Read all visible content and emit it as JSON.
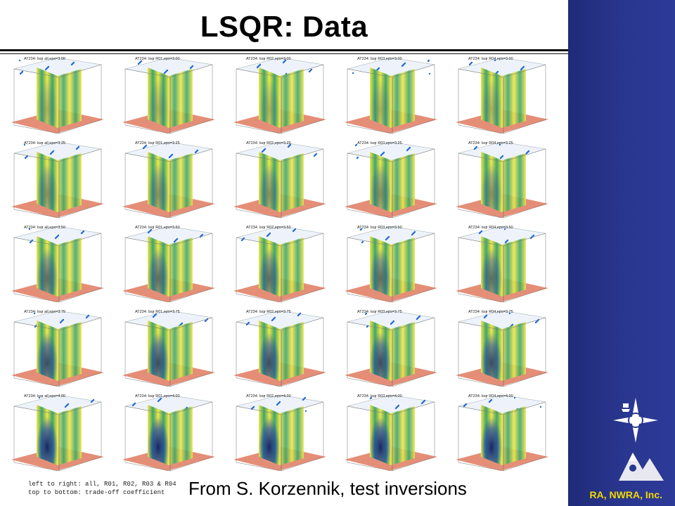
{
  "slide": {
    "title": "LSQR: Data",
    "caption_line1": "left to right: all, R01, R02, R03 & R04",
    "caption_line2": "top to bottom: trade-off coefficient",
    "credit": "From S. Korzennik, test inversions",
    "footer": "RA, NWRA, Inc."
  },
  "grid": {
    "columns": [
      "all",
      "R01",
      "R02",
      "R03",
      "R04"
    ],
    "rows": [
      {
        "eps": "3.00",
        "panels": [
          "AT234: lsqr all,eps=3.00",
          "AT234: lsqr R01,eps=3.00",
          "AT234: lsqr R02,eps=3.00",
          "AT234: lsqr R03,eps=3.00",
          "AT234: lsqr R04,eps=3.00"
        ]
      },
      {
        "eps": "3.25",
        "panels": [
          "AT234: lsqr all,eps=3.25",
          "AT234: lsqr R01,eps=3.25",
          "AT234: lsqr R02,eps=3.25",
          "AT234: lsqr R03,eps=3.25",
          "AT234: lsqr R04,eps=3.25"
        ]
      },
      {
        "eps": "3.50",
        "panels": [
          "AT234: lsqr all,eps=3.50",
          "AT234: lsqr R01,eps=3.50",
          "AT234: lsqr R02,eps=3.50",
          "AT234: lsqr R03,eps=3.50",
          "AT234: lsqr R04,eps=3.50"
        ]
      },
      {
        "eps": "3.75",
        "panels": [
          "AT234: lsqr all,eps=3.75",
          "AT234: lsqr R01,eps=3.75",
          "AT234: lsqr R02,eps=3.75",
          "AT234: lsqr R03,eps=3.75",
          "AT234: lsqr R04,eps=3.75"
        ]
      },
      {
        "eps": "4.00",
        "panels": [
          "AT234: lsqr all,eps=4.00",
          "AT234: lsqr R01,eps=4.00",
          "AT234: lsqr R02,eps=4.00",
          "AT234: lsqr R03,eps=4.00",
          "AT234: lsqr R04,eps=4.00"
        ]
      }
    ]
  },
  "colors": {
    "sidebar": "#2a3790",
    "footer_text": "#f3d800",
    "floor": "#e07a5f",
    "slab_green": "#3fa66a",
    "slab_yellow": "#f2e64a",
    "slab_blue": "#1b3fa8"
  },
  "icons": [
    "nwra-compass-logo",
    "nwra-mountain-logo"
  ]
}
